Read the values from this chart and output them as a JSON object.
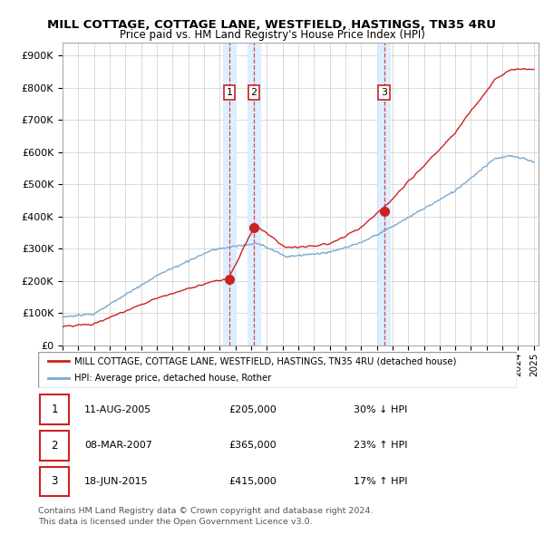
{
  "title": "MILL COTTAGE, COTTAGE LANE, WESTFIELD, HASTINGS, TN35 4RU",
  "subtitle": "Price paid vs. HM Land Registry's House Price Index (HPI)",
  "ylabel_ticks": [
    "£0",
    "£100K",
    "£200K",
    "£300K",
    "£400K",
    "£500K",
    "£600K",
    "£700K",
    "£800K",
    "£900K"
  ],
  "ytick_values": [
    0,
    100000,
    200000,
    300000,
    400000,
    500000,
    600000,
    700000,
    800000,
    900000
  ],
  "ylim": [
    0,
    940000
  ],
  "xlim_start": 1995.0,
  "xlim_end": 2025.3,
  "sale_dates": [
    2005.61,
    2007.18,
    2015.46
  ],
  "sale_prices": [
    205000,
    365000,
    415000
  ],
  "sale_labels": [
    "1",
    "2",
    "3"
  ],
  "red_line_color": "#cc2222",
  "blue_line_color": "#7aaad0",
  "vline_color": "#cc2222",
  "shade_color": "#ddeeff",
  "legend_line1": "MILL COTTAGE, COTTAGE LANE, WESTFIELD, HASTINGS, TN35 4RU (detached house)",
  "legend_line2": "HPI: Average price, detached house, Rother",
  "table_data": [
    [
      "1",
      "11-AUG-2005",
      "£205,000",
      "30% ↓ HPI"
    ],
    [
      "2",
      "08-MAR-2007",
      "£365,000",
      "23% ↑ HPI"
    ],
    [
      "3",
      "18-JUN-2015",
      "£415,000",
      "17% ↑ HPI"
    ]
  ],
  "footnote1": "Contains HM Land Registry data © Crown copyright and database right 2024.",
  "footnote2": "This data is licensed under the Open Government Licence v3.0."
}
